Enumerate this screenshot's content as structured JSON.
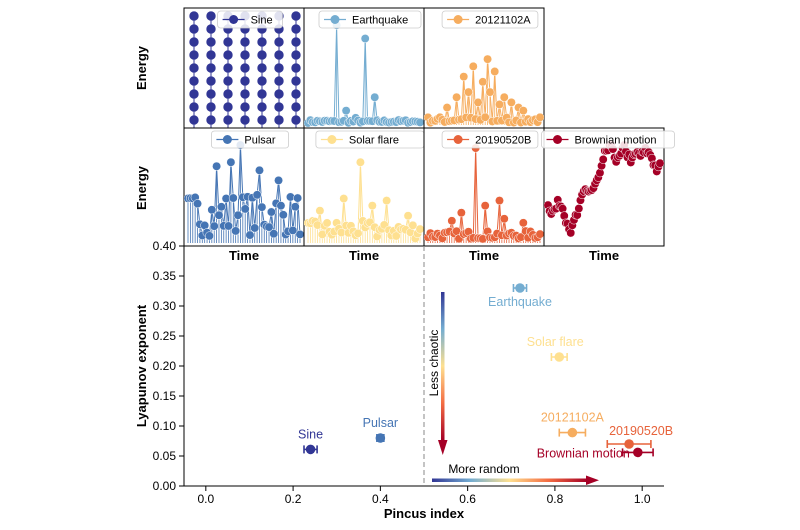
{
  "colors": {
    "sine": "#313695",
    "earthquake": "#74add1",
    "a20121102": "#f6ad5f",
    "pulsar": "#4575b4",
    "solar": "#fee090",
    "b20190520": "#e7633b",
    "brownian": "#a50026",
    "axis": "#000000",
    "divider": "#888888"
  },
  "panels": {
    "ylabel": "Energy",
    "xlabel": "Time",
    "items": [
      {
        "key": "sine",
        "label": "Sine",
        "color": "#313695",
        "kind": "sine"
      },
      {
        "key": "earthquake",
        "label": "Earthquake",
        "color": "#74add1",
        "kind": "quake"
      },
      {
        "key": "a20121102",
        "label": "20121102A",
        "color": "#f6ad5f",
        "kind": "burst"
      },
      {
        "key": "pulsar",
        "label": "Pulsar",
        "color": "#4575b4",
        "kind": "noisy"
      },
      {
        "key": "solar",
        "label": "Solar flare",
        "color": "#fee090",
        "kind": "sparse"
      },
      {
        "key": "b20190520",
        "label": "20190520B",
        "color": "#e7633b",
        "kind": "burst2"
      },
      {
        "key": "brownian",
        "label": "Brownian motion",
        "color": "#a50026",
        "kind": "walk"
      }
    ]
  },
  "chart_data": {
    "type": "scatter",
    "title": "",
    "xlabel": "Pincus index",
    "ylabel": "Lyapunov exponent",
    "xlim": [
      -0.05,
      1.05
    ],
    "ylim": [
      0.0,
      0.4
    ],
    "xticks": [
      "0.0",
      "0.2",
      "0.4",
      "0.6",
      "0.8",
      "1.0"
    ],
    "xtick_values": [
      0.0,
      0.2,
      0.4,
      0.6,
      0.8,
      1.0
    ],
    "yticks": [
      "0.00",
      "0.05",
      "0.10",
      "0.15",
      "0.20",
      "0.25",
      "0.30",
      "0.35",
      "0.40"
    ],
    "ytick_values": [
      0.0,
      0.05,
      0.1,
      0.15,
      0.2,
      0.25,
      0.3,
      0.35,
      0.4
    ],
    "divider_x": 0.5,
    "grid": false,
    "series": [
      {
        "name": "Sine",
        "x": 0.24,
        "y": 0.061,
        "xerr": 0.015,
        "color": "#313695",
        "label_pos": "above"
      },
      {
        "name": "Pulsar",
        "x": 0.4,
        "y": 0.08,
        "xerr": 0.008,
        "color": "#4575b4",
        "label_pos": "above"
      },
      {
        "name": "Earthquake",
        "x": 0.72,
        "y": 0.33,
        "xerr": 0.015,
        "color": "#74add1",
        "label_pos": "below"
      },
      {
        "name": "Solar flare",
        "x": 0.81,
        "y": 0.215,
        "xerr": 0.018,
        "color": "#fee090",
        "label_pos": "above"
      },
      {
        "name": "20121102A",
        "x": 0.84,
        "y": 0.089,
        "xerr": 0.03,
        "color": "#f6ad5f",
        "label_pos": "above"
      },
      {
        "name": "20190520B",
        "x": 0.97,
        "y": 0.07,
        "xerr": 0.05,
        "color": "#e7633b",
        "label_pos": "above-right"
      },
      {
        "name": "Brownian motion",
        "x": 0.99,
        "y": 0.056,
        "xerr": 0.035,
        "color": "#a50026",
        "label_pos": "left"
      }
    ],
    "annotations": {
      "vertical_arrow": "Less chaotic",
      "horizontal_arrow": "More random"
    }
  }
}
